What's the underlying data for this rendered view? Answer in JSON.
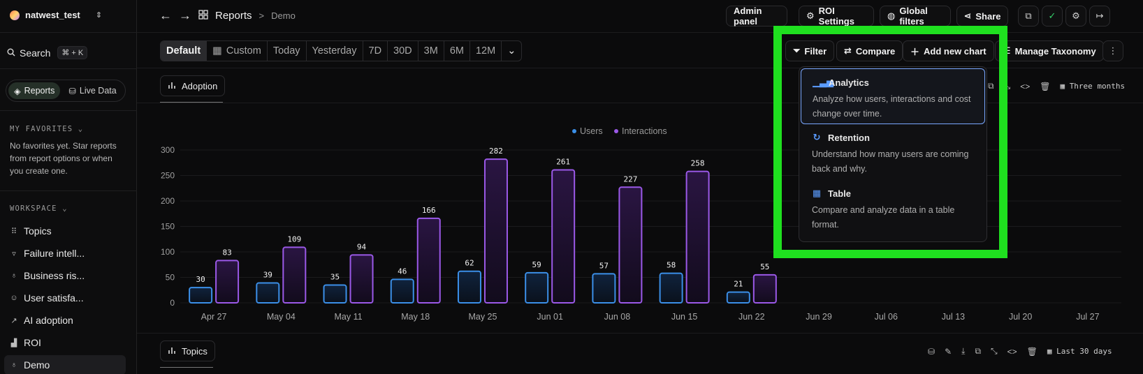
{
  "workspace": {
    "name": "natwest_test"
  },
  "search": {
    "label": "Search",
    "shortcut": "⌘ + K"
  },
  "mode": {
    "reports": "Reports",
    "live": "Live Data"
  },
  "favorites": {
    "heading": "MY FAVORITES",
    "empty": "No favorites yet. Star reports from report options or when you create one."
  },
  "workspace_section": {
    "heading": "WORKSPACE",
    "items": [
      {
        "label": "Topics",
        "icon": "grid-icon"
      },
      {
        "label": "Failure intell...",
        "icon": "thumbs-down-icon"
      },
      {
        "label": "Business ris...",
        "icon": "bulb-icon"
      },
      {
        "label": "User satisfa...",
        "icon": "smile-icon"
      },
      {
        "label": "AI adoption",
        "icon": "trend-icon"
      },
      {
        "label": "ROI",
        "icon": "chart-icon"
      },
      {
        "label": "Demo",
        "icon": "bulb-icon"
      }
    ]
  },
  "header": {
    "title": "Reports",
    "sub": "Demo",
    "admin": "Admin panel",
    "roi": "ROI Settings",
    "global": "Global filters",
    "share": "Share"
  },
  "ranges": [
    "Default",
    "Custom",
    "Today",
    "Yesterday",
    "7D",
    "30D",
    "3M",
    "6M",
    "12M"
  ],
  "toolbar": {
    "filter": "Filter",
    "compare": "Compare",
    "add": "Add new chart",
    "taxonomy": "Manage Taxonomy"
  },
  "dropdown": [
    {
      "title": "Analytics",
      "desc": "Analyze how users, interactions and cost change over time."
    },
    {
      "title": "Retention",
      "desc": "Understand how many users are coming back and why."
    },
    {
      "title": "Table",
      "desc": "Compare and analyze data in a table format."
    }
  ],
  "panel1": {
    "tab": "Adoption",
    "range": "Three months"
  },
  "panel2": {
    "tab": "Topics",
    "range": "Last 30 days"
  },
  "chart_data": {
    "type": "bar",
    "categories": [
      "Apr 27",
      "May 04",
      "May 11",
      "May 18",
      "May 25",
      "Jun 01",
      "Jun 08",
      "Jun 15",
      "Jun 22",
      "Jun 29",
      "Jul 06",
      "Jul 13",
      "Jul 20",
      "Jul 27"
    ],
    "series": [
      {
        "name": "Users",
        "color": "#3b8fe8",
        "values": [
          30,
          39,
          35,
          46,
          62,
          59,
          57,
          58,
          21,
          null,
          null,
          null,
          null,
          null
        ]
      },
      {
        "name": "Interactions",
        "color": "#9b59e8",
        "values": [
          83,
          109,
          94,
          166,
          282,
          261,
          227,
          258,
          55,
          null,
          null,
          null,
          null,
          null
        ]
      }
    ],
    "ylim": [
      0,
      300
    ],
    "yticks": [
      0,
      50,
      100,
      150,
      200,
      250,
      300
    ],
    "legend": "top-center",
    "grid": true
  }
}
